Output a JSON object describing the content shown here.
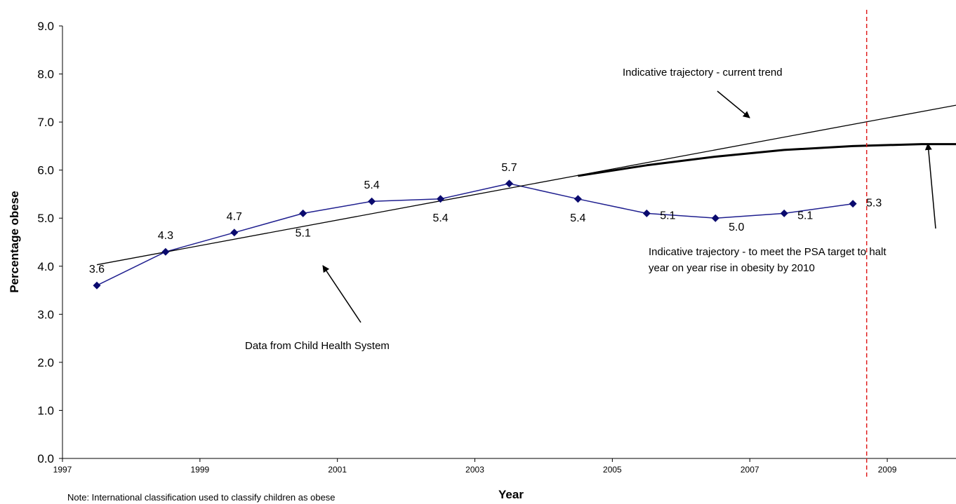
{
  "chart_data": {
    "type": "line",
    "xlabel": "Year",
    "ylabel": "Percentage obese",
    "xlim": [
      1997,
      2010
    ],
    "ylim": [
      0,
      9
    ],
    "grid": false,
    "x_ticks": [
      "1997",
      "1999",
      "2001",
      "2003",
      "2005",
      "2007",
      "2009"
    ],
    "y_ticks": [
      "0.0",
      "1.0",
      "2.0",
      "3.0",
      "4.0",
      "5.0",
      "6.0",
      "7.0",
      "8.0",
      "9.0"
    ],
    "series": [
      {
        "x": [
          1997.5,
          1998.5,
          1999.5,
          2000.5,
          2001.5,
          2002.5,
          2003.5,
          2004.5,
          2005.5,
          2006.5,
          2007.5,
          2008.5
        ],
        "values": [
          3.6,
          4.3,
          4.7,
          5.1,
          5.35,
          5.4,
          5.72,
          5.4,
          5.1,
          5.0,
          5.1,
          5.3
        ],
        "labels": [
          "3.6",
          "4.3",
          "4.7",
          "5.1",
          "5.4",
          "5.4",
          "5.7",
          "5.4",
          "5.1",
          "5.0",
          "5.1",
          "5.3"
        ],
        "color": "#1f1f8f"
      },
      {
        "x": [
          1997.5,
          2010.0
        ],
        "values": [
          4.03,
          7.35
        ],
        "color": "#000000"
      },
      {
        "x": [
          2004.5,
          2005.5,
          2006.5,
          2007.5,
          2008.5,
          2009.5,
          2010.0
        ],
        "values": [
          5.88,
          6.1,
          6.28,
          6.42,
          6.5,
          6.54,
          6.54
        ],
        "color": "#000000"
      }
    ],
    "vline": {
      "x": 2008.7,
      "color": "#e02020"
    },
    "annotations": [
      "Indicative trajectory - current trend",
      "Indicative trajectory - to meet the PSA target to halt",
      "year  on year rise in obesity by 2010",
      "Data from Child Health System"
    ],
    "note": "Note: International classification used to classify children as obese"
  }
}
